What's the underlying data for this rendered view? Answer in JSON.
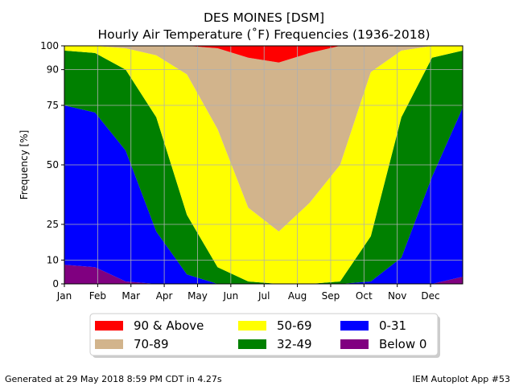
{
  "chart_data": {
    "type": "area",
    "title": "DES MOINES [DSM]",
    "subtitle": "Hourly Air Temperature (˚F) Frequencies (1936-2018)",
    "xlabel": "",
    "ylabel": "Frequency [%]",
    "ylim": [
      0,
      100
    ],
    "yticks": [
      0,
      10,
      25,
      50,
      75,
      90,
      100
    ],
    "xticks": [
      "Jan",
      "Feb",
      "Mar",
      "Apr",
      "May",
      "Jun",
      "Jul",
      "Aug",
      "Sep",
      "Oct",
      "Nov",
      "Dec"
    ],
    "x_unit": "week of year",
    "stacking": "cumulative, lowest temperature class at bottom",
    "grid": true,
    "legend_position": "bottom",
    "x": [
      1,
      5,
      9,
      13,
      17,
      21,
      25,
      29,
      33,
      37,
      41,
      45,
      49,
      53
    ],
    "boundaries": [
      {
        "name": "Below 0 / 0-31",
        "values": [
          8,
          7,
          1,
          0,
          0,
          0,
          0,
          0,
          0,
          0,
          0,
          0,
          0,
          3
        ]
      },
      {
        "name": "0-31 / 32-49",
        "values": [
          75,
          72,
          56,
          22,
          4,
          0,
          0,
          0,
          0,
          0,
          1,
          11,
          45,
          74
        ]
      },
      {
        "name": "32-49 / 50-69",
        "values": [
          98,
          97,
          90,
          70,
          29,
          7,
          1,
          0,
          0,
          1,
          20,
          70,
          95,
          98
        ]
      },
      {
        "name": "50-69 / 70-89",
        "values": [
          100,
          100,
          99,
          96,
          88,
          65,
          32,
          22,
          34,
          50,
          89,
          98,
          100,
          100
        ]
      },
      {
        "name": "70-89 / 90 & Above",
        "values": [
          100,
          100,
          100,
          100,
          100,
          99,
          95,
          93,
          97,
          100,
          100,
          100,
          100,
          100
        ]
      }
    ],
    "series": [
      {
        "name": "90 & Above",
        "color": "#ff0000"
      },
      {
        "name": "70-89",
        "color": "#d2b48c"
      },
      {
        "name": "50-69",
        "color": "#ffff00"
      },
      {
        "name": "32-49",
        "color": "#008000"
      },
      {
        "name": "0-31",
        "color": "#0000ff"
      },
      {
        "name": "Below 0",
        "color": "#800080"
      }
    ]
  },
  "footer": {
    "left": "Generated at 29 May 2018 8:59 PM CDT in 4.27s",
    "right": "IEM Autoplot App #53"
  }
}
